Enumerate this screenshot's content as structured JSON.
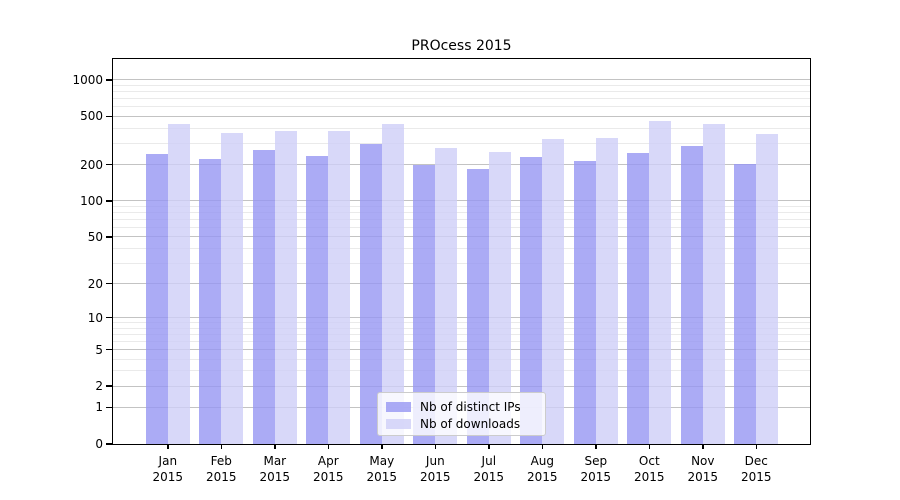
{
  "chart_data": {
    "type": "bar",
    "title": "PROcess 2015",
    "y_scale": "log1p",
    "grid": "horizontal",
    "legend_position": "bottom-center",
    "categories": [
      "Jan",
      "Feb",
      "Mar",
      "Apr",
      "May",
      "Jun",
      "Jul",
      "Aug",
      "Sep",
      "Oct",
      "Nov",
      "Dec"
    ],
    "year": "2015",
    "series": [
      {
        "name": "Nb of distinct IPs",
        "color": "rgba(150,150,243,0.8)",
        "values": [
          245,
          224,
          263,
          237,
          297,
          197,
          183,
          230,
          213,
          250,
          287,
          202
        ]
      },
      {
        "name": "Nb of downloads",
        "color": "rgba(206,206,248,0.8)",
        "values": [
          435,
          366,
          381,
          377,
          430,
          272,
          256,
          326,
          331,
          461,
          431,
          359
        ]
      }
    ],
    "y_ticks": [
      0,
      1,
      2,
      5,
      10,
      20,
      50,
      100,
      200,
      500,
      1000
    ],
    "y_tick_labels": [
      "0",
      "1",
      "2",
      "5",
      "10",
      "20",
      "50",
      "100",
      "200",
      "500",
      "1000"
    ],
    "y_minor_gridlines": [
      3,
      4,
      6,
      7,
      8,
      9,
      30,
      40,
      60,
      70,
      80,
      90,
      300,
      400,
      600,
      700,
      800,
      900
    ],
    "ylim": [
      0,
      1490
    ]
  },
  "colors": {
    "bar_ips": "rgba(150,150,243,0.8)",
    "bar_downloads": "rgba(206,206,248,0.8)",
    "grid_major": "#c3c3c3",
    "grid_minor": "#eaeaea",
    "axis": "#000000",
    "background": "#ffffff"
  }
}
